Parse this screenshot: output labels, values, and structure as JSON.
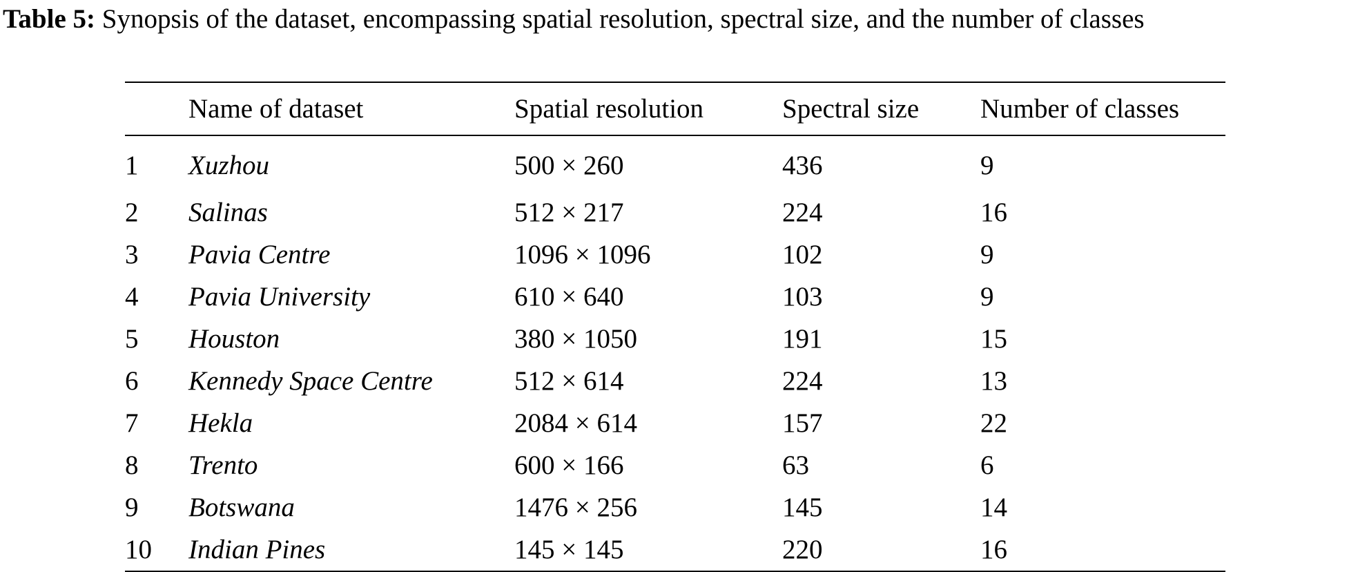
{
  "caption": {
    "label": "Table 5:",
    "text": "Synopsis of the dataset, encompassing spatial resolution, spectral size, and the number of classes"
  },
  "table": {
    "headers": [
      "",
      "Name of dataset",
      "Spatial resolution",
      "Spectral size",
      "Number of classes"
    ],
    "rows": [
      {
        "index": "1",
        "name": "Xuzhou",
        "resolution": "500 × 260",
        "spectral": "436",
        "classes": "9"
      },
      {
        "index": "2",
        "name": "Salinas",
        "resolution": "512 × 217",
        "spectral": "224",
        "classes": "16"
      },
      {
        "index": "3",
        "name": "Pavia Centre",
        "resolution": "1096 × 1096",
        "spectral": "102",
        "classes": "9"
      },
      {
        "index": "4",
        "name": "Pavia University",
        "resolution": "610 × 640",
        "spectral": "103",
        "classes": "9"
      },
      {
        "index": "5",
        "name": "Houston",
        "resolution": "380 × 1050",
        "spectral": "191",
        "classes": "15"
      },
      {
        "index": "6",
        "name": "Kennedy Space Centre",
        "resolution": "512 × 614",
        "spectral": "224",
        "classes": "13"
      },
      {
        "index": "7",
        "name": "Hekla",
        "resolution": "2084 × 614",
        "spectral": "157",
        "classes": "22"
      },
      {
        "index": "8",
        "name": "Trento",
        "resolution": "600 × 166",
        "spectral": "63",
        "classes": "6"
      },
      {
        "index": "9",
        "name": "Botswana",
        "resolution": "1476 × 256",
        "spectral": "145",
        "classes": "14"
      },
      {
        "index": "10",
        "name": "Indian Pines",
        "resolution": "145 × 145",
        "spectral": "220",
        "classes": "16"
      }
    ]
  }
}
